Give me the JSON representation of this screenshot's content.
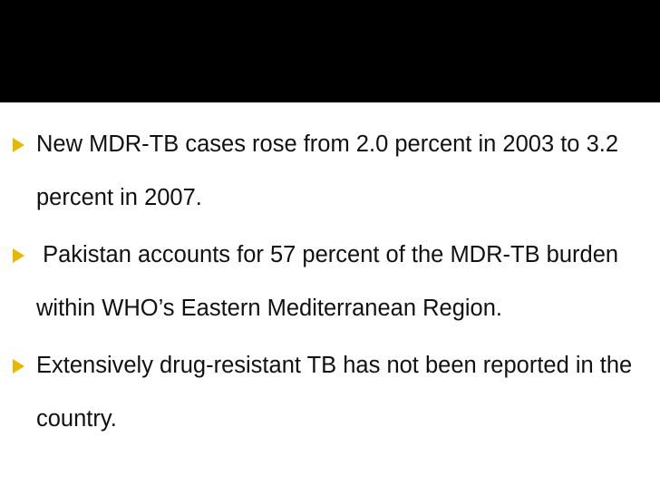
{
  "bullets": [
    "New MDR-TB cases rose from 2.0 percent in 2003 to 3.2 percent in 2007.",
    " Pakistan accounts for 57 percent of the MDR-TB burden within WHO’s Eastern Mediterranean Region.",
    "Extensively drug-resistant TB has not been reported in the country."
  ]
}
